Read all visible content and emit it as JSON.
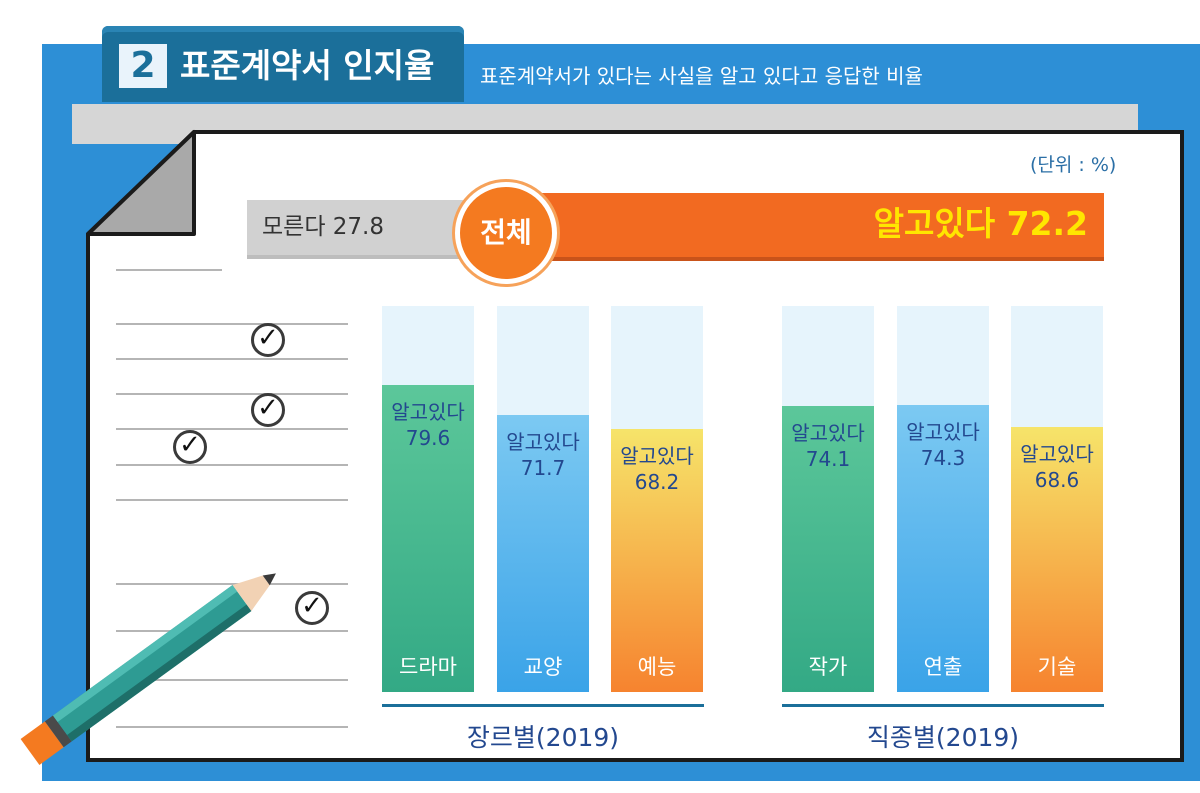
{
  "header": {
    "number": "2",
    "title": "표준계약서 인지율",
    "subtitle": "표준계약서가 있다는 사실을 알고 있다고 응답한 비율"
  },
  "unit_label": "(단위 : %)",
  "overall": {
    "center_label": "전체",
    "unknown_text": "모른다 27.8",
    "known_text": "알고있다 72.2"
  },
  "chart_data": {
    "type": "bar",
    "unit": "%",
    "ylim": [
      0,
      100
    ],
    "overall": {
      "label": "전체",
      "known": 72.2,
      "unknown": 27.8
    },
    "groups": [
      {
        "label": "장르별(2019)",
        "categories": [
          "드라마",
          "교양",
          "예능"
        ],
        "values": [
          79.6,
          71.7,
          68.2
        ],
        "value_prefix": "알고있다",
        "colors": [
          [
            "#5cc79a",
            "#33a985"
          ],
          [
            "#7cc9f2",
            "#3aa3e8"
          ],
          [
            "#f6e46a",
            "#f6832f"
          ]
        ]
      },
      {
        "label": "직종별(2019)",
        "categories": [
          "작가",
          "연출",
          "기술"
        ],
        "values": [
          74.1,
          74.3,
          68.6
        ],
        "value_prefix": "알고있다",
        "colors": [
          [
            "#5cc79a",
            "#33a985"
          ],
          [
            "#7cc9f2",
            "#3aa3e8"
          ],
          [
            "#f6e46a",
            "#f6832f"
          ]
        ]
      }
    ]
  },
  "colors": {
    "frame": "#2d8fd6",
    "badge": "#1b6f9a",
    "known_bar": "#f26a21",
    "known_text": "#ffe600",
    "unknown_bar": "#d1d1d1",
    "value_text": "#23488f"
  }
}
